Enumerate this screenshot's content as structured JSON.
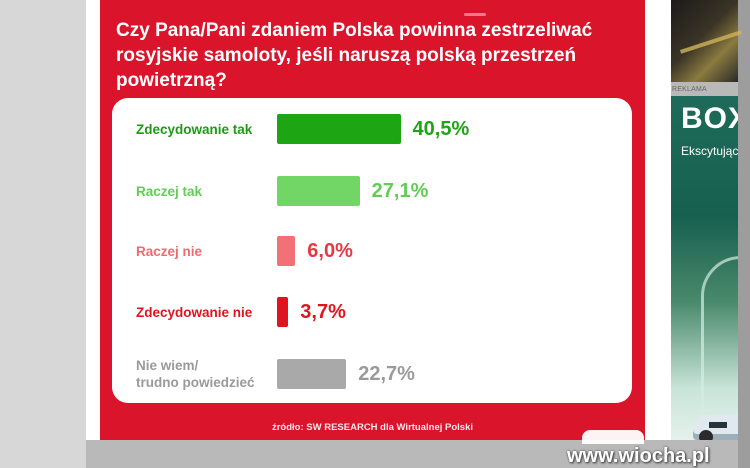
{
  "poll": {
    "question": "Czy Pana/Pani zdaniem Polska powinna zestrzeliwać rosyjskie samoloty, jeśli naruszą polską przestrzeń powietrzną?",
    "answers": [
      {
        "label": "Zdecydowanie tak",
        "value_label": "40,5%",
        "percent": 40.5,
        "label_color": "#1e9a16",
        "bar_color": "#1ea514",
        "value_color": "#1ea514"
      },
      {
        "label": "Raczej tak",
        "value_label": "27,1%",
        "percent": 27.1,
        "label_color": "#5fcf53",
        "bar_color": "#72d666",
        "value_color": "#5fcf53"
      },
      {
        "label": "Raczej nie",
        "value_label": "6,0%",
        "percent": 6.0,
        "label_color": "#ef6a6f",
        "bar_color": "#f17176",
        "value_color": "#e23a44"
      },
      {
        "label": "Zdecydowanie nie",
        "value_label": "3,7%",
        "percent": 3.7,
        "label_color": "#e0141f",
        "bar_color": "#e0141f",
        "value_color": "#e0141f"
      },
      {
        "label": "Nie wiem/\ntrudno powiedzieć",
        "value_label": "22,7%",
        "percent": 22.7,
        "label_color": "#9a9a9a",
        "bar_color": "#a9a9a9",
        "value_color": "#9a9a9a"
      }
    ],
    "source": "źródło: SW RESEARCH dla Wirtualnej Polski"
  },
  "sidebar_ad": {
    "label": "REKLAMA",
    "brand": "BOX",
    "tagline": "Ekscytujący"
  },
  "watermark": "www.wiocha.pl",
  "colors": {
    "card_red": "#d9142b",
    "panel_white": "#ffffff"
  }
}
